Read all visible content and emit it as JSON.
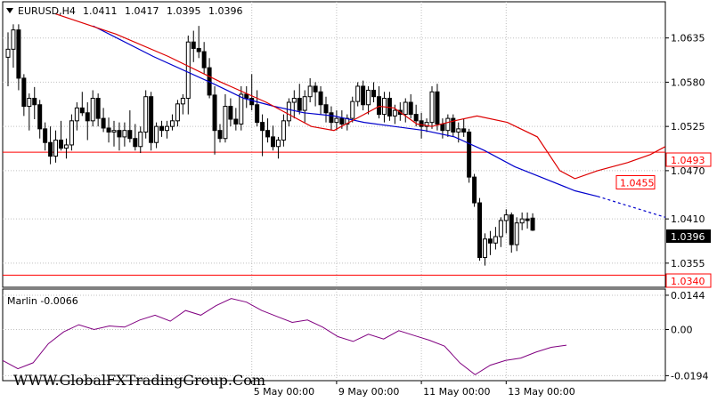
{
  "chart_data": [
    {
      "type": "candlestick",
      "symbol_label": "EURUSD,H4",
      "ohlc_header": [
        "1.0411",
        "1.0417",
        "1.0395",
        "1.0396"
      ],
      "y_ticks": [
        "1.0635",
        "1.0580",
        "1.0525",
        "1.0470",
        "1.0410",
        "1.0355"
      ],
      "ylim": [
        1.0325,
        1.068
      ],
      "x_ticks": [
        "5 May 00:00",
        "9 May 00:00",
        "11 May 00:00",
        "13 May 00:00"
      ],
      "x_tick_bar_index": [
        46,
        62,
        78,
        94
      ],
      "candles": [
        [
          1.0611,
          1.0642,
          1.0575,
          1.0621
        ],
        [
          1.0621,
          1.0652,
          1.0598,
          1.0645
        ],
        [
          1.0645,
          1.0652,
          1.057,
          1.0585
        ],
        [
          1.0585,
          1.059,
          1.0538,
          1.055
        ],
        [
          1.055,
          1.0566,
          1.052,
          1.056
        ],
        [
          1.056,
          1.0574,
          1.0534,
          1.0552
        ],
        [
          1.0552,
          1.0558,
          1.051,
          1.0522
        ],
        [
          1.0522,
          1.053,
          1.0495,
          1.0505
        ],
        [
          1.0505,
          1.0525,
          1.0478,
          1.0488
        ],
        [
          1.0488,
          1.052,
          1.048,
          1.0508
        ],
        [
          1.0508,
          1.0532,
          1.0495,
          1.0498
        ],
        [
          1.0498,
          1.051,
          1.0485,
          1.0502
        ],
        [
          1.0502,
          1.054,
          1.0495,
          1.0532
        ],
        [
          1.0532,
          1.0555,
          1.052,
          1.0548
        ],
        [
          1.0548,
          1.0568,
          1.0538,
          1.0542
        ],
        [
          1.0542,
          1.0555,
          1.0508,
          1.0532
        ],
        [
          1.0532,
          1.057,
          1.0525,
          1.056
        ],
        [
          1.056,
          1.0566,
          1.0525,
          1.0535
        ],
        [
          1.0535,
          1.0548,
          1.0518,
          1.0523
        ],
        [
          1.0523,
          1.0536,
          1.0505,
          1.0518
        ],
        [
          1.0518,
          1.0532,
          1.05,
          1.052
        ],
        [
          1.052,
          1.053,
          1.0495,
          1.0512
        ],
        [
          1.0512,
          1.053,
          1.05,
          1.052
        ],
        [
          1.052,
          1.0545,
          1.0505,
          1.051
        ],
        [
          1.051,
          1.0528,
          1.0495,
          1.05
        ],
        [
          1.05,
          1.0525,
          1.0492,
          1.0518
        ],
        [
          1.0518,
          1.057,
          1.051,
          1.0562
        ],
        [
          1.0562,
          1.0568,
          1.0495,
          1.0505
        ],
        [
          1.0505,
          1.053,
          1.0498,
          1.0525
        ],
        [
          1.0525,
          1.0532,
          1.0512,
          1.052
        ],
        [
          1.052,
          1.0532,
          1.051,
          1.0525
        ],
        [
          1.0525,
          1.054,
          1.052,
          1.0532
        ],
        [
          1.0532,
          1.0558,
          1.0525,
          1.0553
        ],
        [
          1.0553,
          1.0565,
          1.054,
          1.056
        ],
        [
          1.056,
          1.0638,
          1.054,
          1.063
        ],
        [
          1.063,
          1.0644,
          1.0605,
          1.0622
        ],
        [
          1.0622,
          1.065,
          1.061,
          1.0618
        ],
        [
          1.0618,
          1.063,
          1.059,
          1.0598
        ],
        [
          1.0598,
          1.061,
          1.056,
          1.0564
        ],
        [
          1.0564,
          1.0575,
          1.049,
          1.052
        ],
        [
          1.052,
          1.0528,
          1.0505,
          1.051
        ],
        [
          1.051,
          1.0565,
          1.0505,
          1.055
        ],
        [
          1.055,
          1.056,
          1.0525,
          1.0534
        ],
        [
          1.0534,
          1.0548,
          1.052,
          1.0528
        ],
        [
          1.0528,
          1.0575,
          1.052,
          1.0565
        ],
        [
          1.0565,
          1.0575,
          1.0548,
          1.056
        ],
        [
          1.056,
          1.059,
          1.0545,
          1.0552
        ],
        [
          1.0552,
          1.057,
          1.0525,
          1.053
        ],
        [
          1.053,
          1.054,
          1.0488,
          1.052
        ],
        [
          1.052,
          1.0535,
          1.0505,
          1.0512
        ],
        [
          1.0512,
          1.0526,
          1.0495,
          1.05
        ],
        [
          1.05,
          1.0512,
          1.0485,
          1.0508
        ],
        [
          1.0508,
          1.054,
          1.05,
          1.0532
        ],
        [
          1.0532,
          1.056,
          1.0525,
          1.0555
        ],
        [
          1.0555,
          1.057,
          1.0535,
          1.056
        ],
        [
          1.056,
          1.0578,
          1.054,
          1.0545
        ],
        [
          1.0545,
          1.057,
          1.053,
          1.0562
        ],
        [
          1.0562,
          1.0585,
          1.0555,
          1.0575
        ],
        [
          1.0575,
          1.058,
          1.055,
          1.0568
        ],
        [
          1.0568,
          1.0575,
          1.054,
          1.0552
        ],
        [
          1.0552,
          1.0562,
          1.053,
          1.0542
        ],
        [
          1.0542,
          1.055,
          1.052,
          1.053
        ],
        [
          1.053,
          1.0545,
          1.052,
          1.0535
        ],
        [
          1.0535,
          1.0545,
          1.0522,
          1.0528
        ],
        [
          1.0528,
          1.054,
          1.052,
          1.0535
        ],
        [
          1.0535,
          1.0562,
          1.053,
          1.0556
        ],
        [
          1.0556,
          1.058,
          1.055,
          1.0575
        ],
        [
          1.0575,
          1.0582,
          1.0545,
          1.0552
        ],
        [
          1.0552,
          1.0575,
          1.054,
          1.057
        ],
        [
          1.057,
          1.058,
          1.0555,
          1.0562
        ],
        [
          1.0562,
          1.0575,
          1.0535,
          1.054
        ],
        [
          1.054,
          1.0568,
          1.053,
          1.056
        ],
        [
          1.056,
          1.0568,
          1.0532,
          1.0538
        ],
        [
          1.0538,
          1.0552,
          1.0528,
          1.0545
        ],
        [
          1.0545,
          1.0555,
          1.0532,
          1.054
        ],
        [
          1.054,
          1.056,
          1.053,
          1.0555
        ],
        [
          1.0555,
          1.0565,
          1.0535,
          1.054
        ],
        [
          1.054,
          1.0552,
          1.0525,
          1.0532
        ],
        [
          1.0532,
          1.0542,
          1.051,
          1.0525
        ],
        [
          1.0525,
          1.0535,
          1.0518,
          1.053
        ],
        [
          1.053,
          1.0575,
          1.0522,
          1.0568
        ],
        [
          1.0568,
          1.0578,
          1.052,
          1.0528
        ],
        [
          1.0528,
          1.0535,
          1.051,
          1.052
        ],
        [
          1.052,
          1.054,
          1.0512,
          1.0535
        ],
        [
          1.0535,
          1.054,
          1.0512,
          1.0518
        ],
        [
          1.0518,
          1.053,
          1.0505,
          1.0522
        ],
        [
          1.0522,
          1.0535,
          1.0512,
          1.0518
        ],
        [
          1.0518,
          1.0522,
          1.0455,
          1.0462
        ],
        [
          1.0462,
          1.0466,
          1.0425,
          1.043
        ],
        [
          1.043,
          1.0436,
          1.0358,
          1.0362
        ],
        [
          1.0362,
          1.0392,
          1.0352,
          1.0385
        ],
        [
          1.0385,
          1.0395,
          1.0365,
          1.038
        ],
        [
          1.038,
          1.04,
          1.0372,
          1.0388
        ],
        [
          1.0388,
          1.0412,
          1.0375,
          1.0408
        ],
        [
          1.0408,
          1.0422,
          1.0392,
          1.0415
        ],
        [
          1.0415,
          1.0418,
          1.0368,
          1.0378
        ],
        [
          1.0378,
          1.0412,
          1.037,
          1.0405
        ],
        [
          1.0405,
          1.0418,
          1.0396,
          1.041
        ],
        [
          1.041,
          1.0418,
          1.0398,
          1.0408
        ],
        [
          1.0411,
          1.0417,
          1.0395,
          1.0396
        ]
      ],
      "ma_blue": [
        [
          24,
          1.065
        ],
        [
          40,
          1.0612
        ],
        [
          56,
          1.0578
        ],
        [
          64,
          1.056
        ],
        [
          72,
          1.055
        ],
        [
          80,
          1.0542
        ],
        [
          88,
          1.0538
        ],
        [
          96,
          1.053
        ],
        [
          104,
          1.0525
        ],
        [
          112,
          1.052
        ],
        [
          120,
          1.0512
        ],
        [
          128,
          1.0495
        ],
        [
          136,
          1.0475
        ],
        [
          144,
          1.046
        ],
        [
          152,
          1.0445
        ],
        [
          158,
          1.0438
        ]
      ],
      "ma_blue_projection": [
        [
          158,
          1.0438
        ],
        [
          176,
          1.0412
        ]
      ],
      "ma_red": [
        [
          14,
          1.0665
        ],
        [
          30,
          1.064
        ],
        [
          44,
          1.0612
        ],
        [
          58,
          1.058
        ],
        [
          70,
          1.0555
        ],
        [
          76,
          1.054
        ],
        [
          82,
          1.0525
        ],
        [
          88,
          1.052
        ],
        [
          96,
          1.054
        ],
        [
          100,
          1.055
        ],
        [
          104,
          1.0548
        ],
        [
          110,
          1.0528
        ],
        [
          114,
          1.0525
        ],
        [
          120,
          1.0532
        ],
        [
          126,
          1.0538
        ],
        [
          134,
          1.053
        ],
        [
          142,
          1.0512
        ],
        [
          148,
          1.047
        ],
        [
          152,
          1.046
        ],
        [
          158,
          1.047
        ],
        [
          166,
          1.048
        ],
        [
          172,
          1.049
        ],
        [
          176,
          1.05
        ]
      ],
      "h_levels": [
        {
          "price": 1.0493,
          "label": "1.0493",
          "color": "#ff0000"
        },
        {
          "price": 1.034,
          "label": "1.0340",
          "color": "#ff0000"
        }
      ],
      "projection_label": {
        "price": 1.0455,
        "label": "1.0455",
        "color": "#ff0000"
      },
      "current_price_label": {
        "price": 1.0396,
        "label": "1.0396"
      }
    },
    {
      "type": "line",
      "indicator_label": "Marlin -0.0066",
      "y_ticks": [
        "0.0144",
        "0.00",
        "-0.0194"
      ],
      "ylim": [
        -0.0215,
        0.017
      ],
      "series_color": "#800080",
      "x": [
        0,
        3,
        6,
        9,
        12,
        15,
        18,
        21,
        24,
        27,
        30,
        33,
        36,
        39,
        42,
        45,
        48,
        51,
        54,
        57,
        60,
        63,
        66,
        69,
        72,
        75,
        78,
        81,
        84,
        87,
        90,
        93,
        96,
        99,
        102,
        105,
        108,
        111
      ],
      "values": [
        -0.013,
        -0.0165,
        -0.014,
        -0.006,
        -0.001,
        0.002,
        0.0,
        0.0015,
        0.001,
        0.004,
        0.006,
        0.0035,
        0.008,
        0.006,
        0.01,
        0.013,
        0.0115,
        0.008,
        0.0055,
        0.003,
        0.004,
        0.001,
        -0.003,
        -0.005,
        -0.002,
        -0.004,
        -0.0005,
        -0.0025,
        -0.0045,
        -0.007,
        -0.014,
        -0.019,
        -0.015,
        -0.013,
        -0.012,
        -0.0095,
        -0.0075,
        -0.0066
      ]
    }
  ],
  "watermark": "WWW.GlobalFXTradingGroup.Com",
  "colors": {
    "bull_body": "#ffffff",
    "bear_body": "#000000",
    "grid": "#c0c0c0",
    "ma_blue": "#0000cc",
    "ma_red": "#dd0000"
  }
}
